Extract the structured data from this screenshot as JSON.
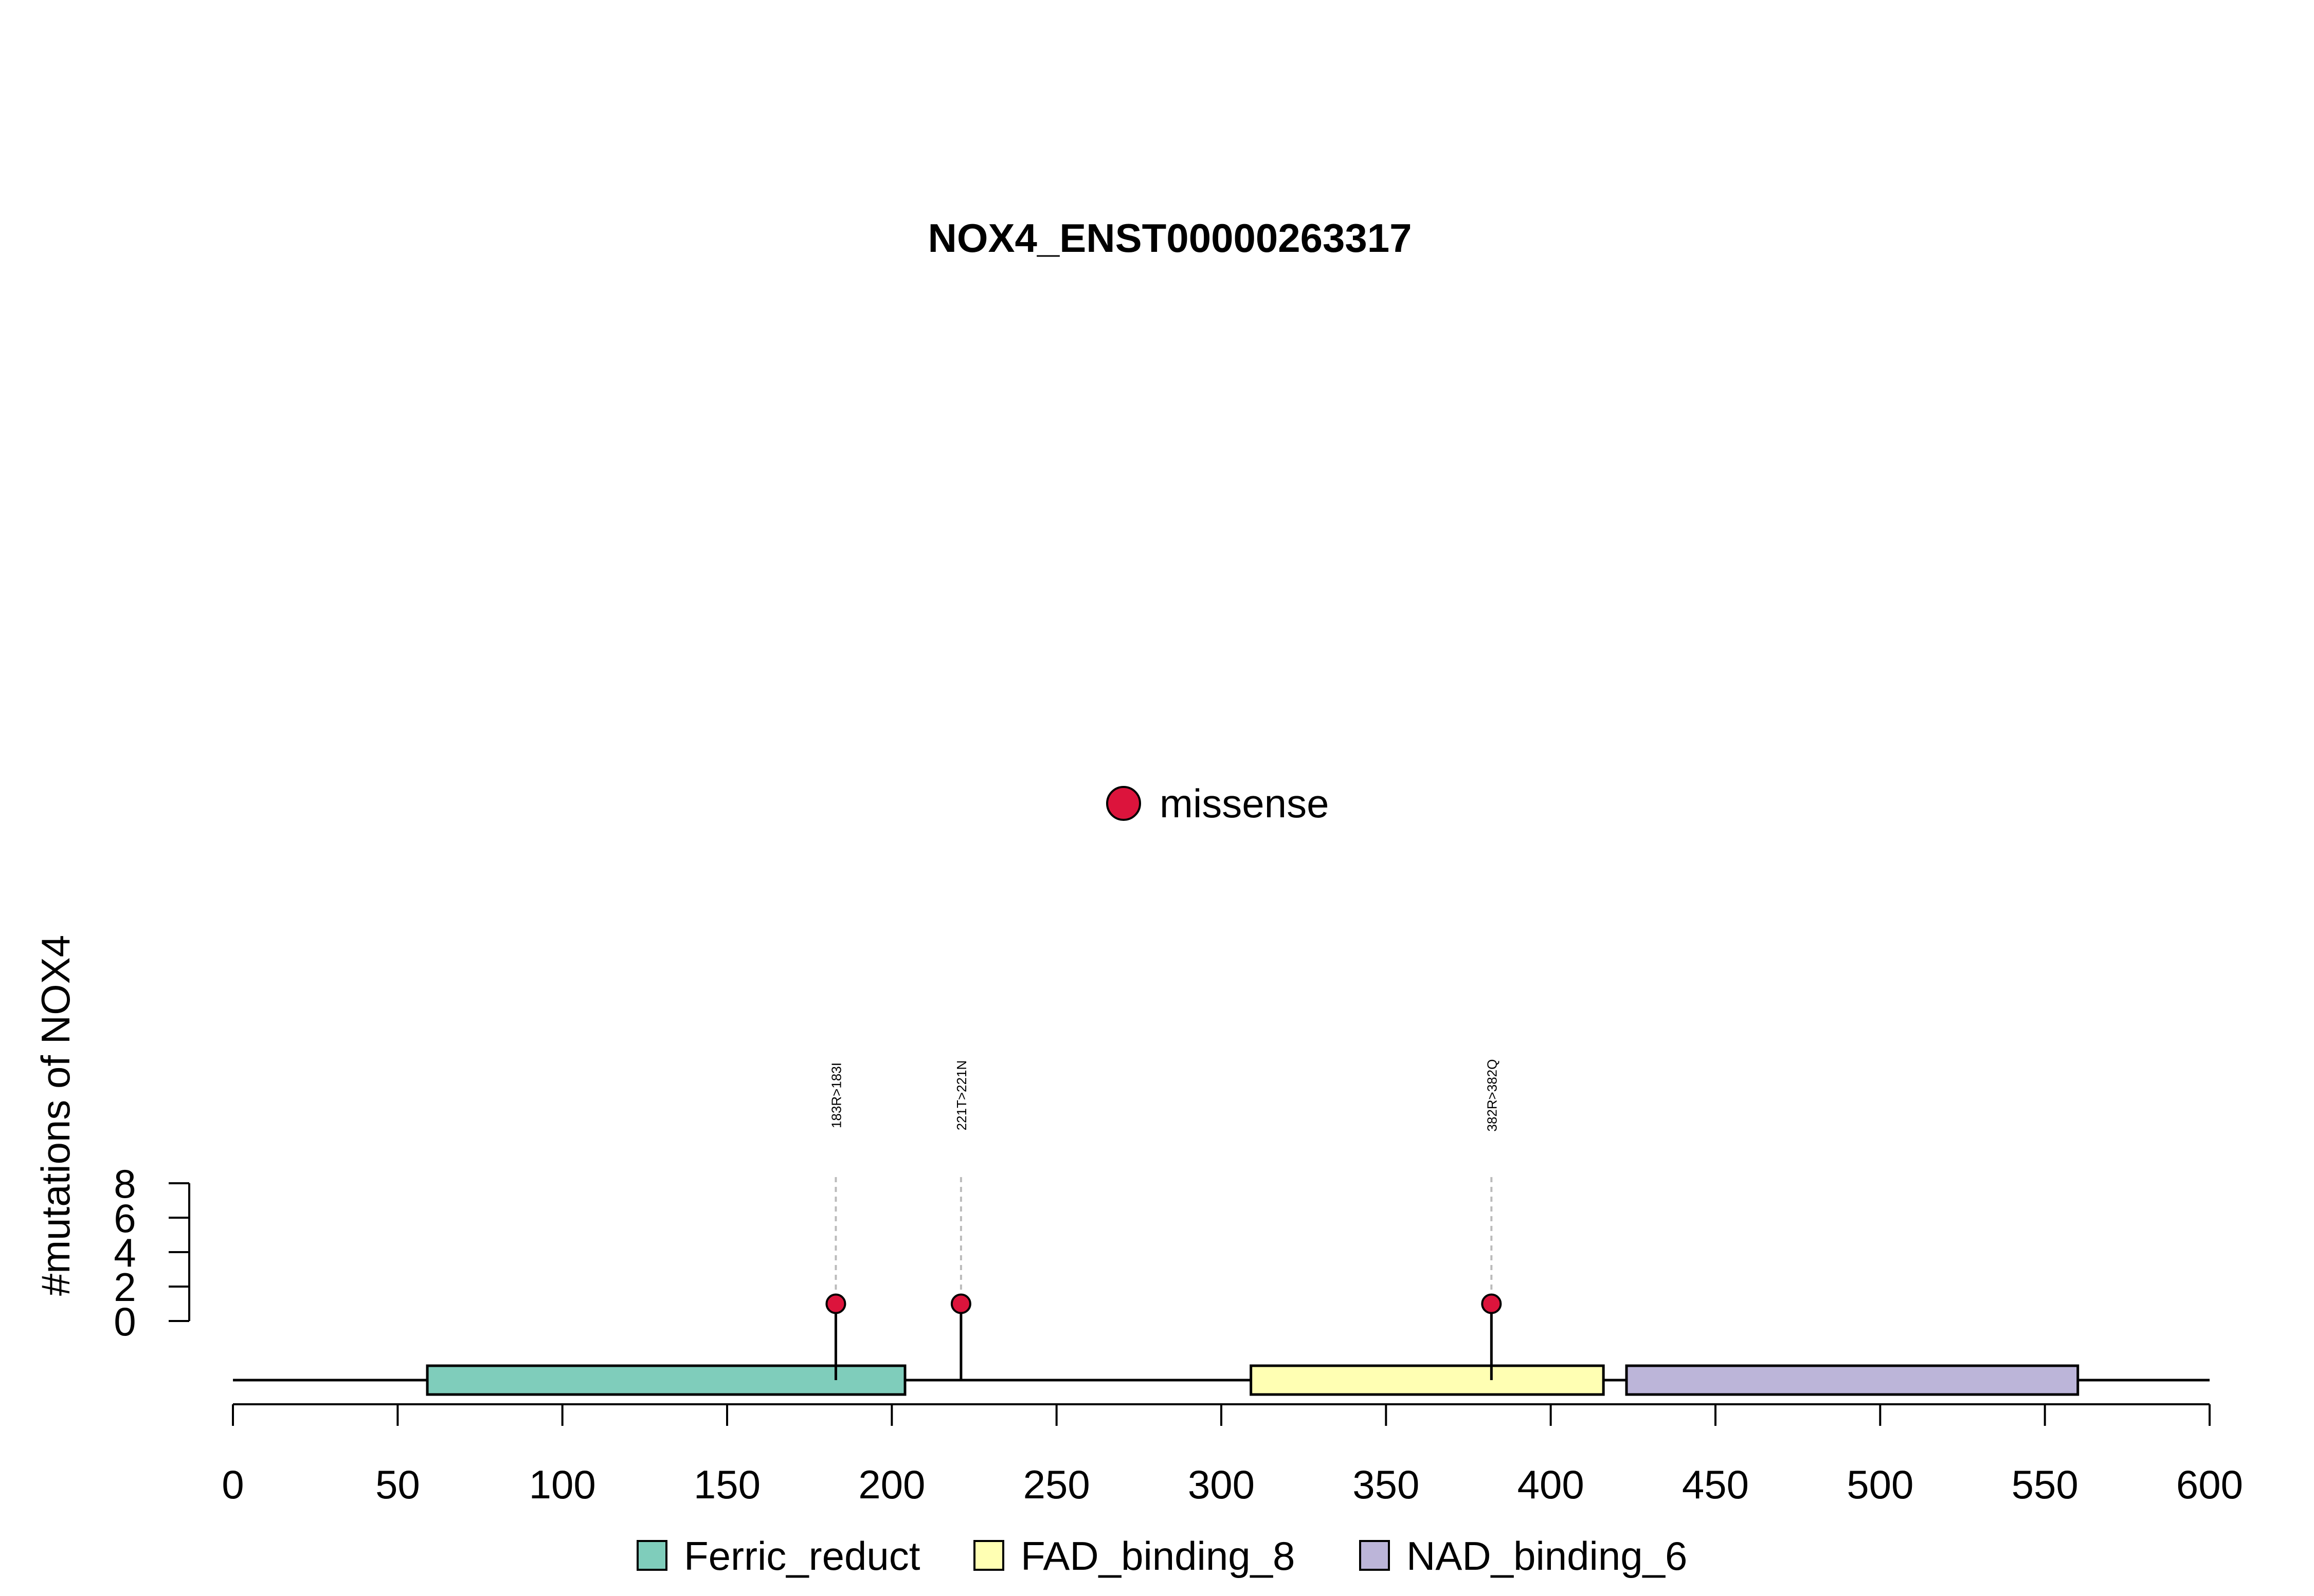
{
  "chart_data": {
    "type": "lollipop",
    "title": "NOX4_ENST00000263317",
    "ylabel": "#mutations of NOX4",
    "xlim": [
      0,
      600
    ],
    "x_ticks": [
      0,
      50,
      100,
      150,
      200,
      250,
      300,
      350,
      400,
      450,
      500,
      550,
      600
    ],
    "x_tick_labels": [
      "0",
      "50",
      "100",
      "150",
      "200",
      "250",
      "300",
      "350",
      "400",
      "450",
      "500",
      "550",
      "600"
    ],
    "ylim": [
      0,
      8
    ],
    "y_ticks": [
      0,
      2,
      4,
      6,
      8
    ],
    "y_tick_labels": [
      "0",
      "2",
      "4",
      "6",
      "8"
    ],
    "protein_length": 600,
    "mutation_types": [
      {
        "label": "missense",
        "color": "#dc143c"
      }
    ],
    "mutations": [
      {
        "position": 183,
        "label": "183R>183I",
        "count": 1,
        "type": "missense"
      },
      {
        "position": 221,
        "label": "221T>221N",
        "count": 1,
        "type": "missense"
      },
      {
        "position": 382,
        "label": "382R>382Q",
        "count": 1,
        "type": "missense"
      }
    ],
    "domains": [
      {
        "name": "Ferric_reduct",
        "start": 59,
        "end": 204,
        "color": "#7fcdbb"
      },
      {
        "name": "FAD_binding_8",
        "start": 309,
        "end": 416,
        "color": "#ffffb3"
      },
      {
        "name": "NAD_binding_6",
        "start": 423,
        "end": 560,
        "color": "#bcb5d9"
      }
    ]
  }
}
